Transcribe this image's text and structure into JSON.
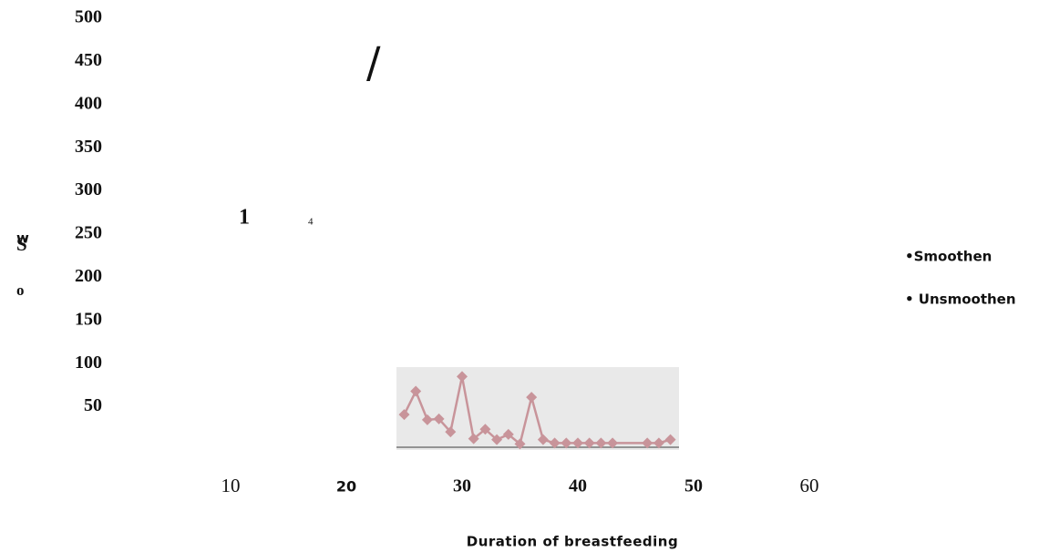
{
  "chart_data": {
    "type": "line",
    "xlabel": "Duration of breastfeeding",
    "ylabel": [
      "w",
      "S",
      "o"
    ],
    "annotations": [
      "1",
      "4",
      "/"
    ],
    "legend": [
      "•Smoothen",
      "• Unsmoothen"
    ],
    "xlim": [
      0,
      60
    ],
    "ylim": [
      0,
      500
    ],
    "xticks": [
      10,
      20,
      30,
      40,
      50,
      60
    ],
    "yticks": [
      50,
      100,
      150,
      200,
      250,
      300,
      350,
      400,
      450,
      500
    ],
    "x": [
      25,
      26,
      27,
      28,
      29,
      30,
      31,
      32,
      33,
      34,
      35,
      36,
      37,
      38,
      39,
      40,
      41,
      42,
      43,
      46,
      47,
      48
    ],
    "series": [
      {
        "color": "#c8949a",
        "values": [
          41,
          68,
          35,
          36,
          21,
          85,
          13,
          24,
          12,
          18,
          7,
          61,
          12,
          8,
          8,
          8,
          8,
          8,
          8,
          8,
          8,
          12
        ]
      }
    ]
  }
}
